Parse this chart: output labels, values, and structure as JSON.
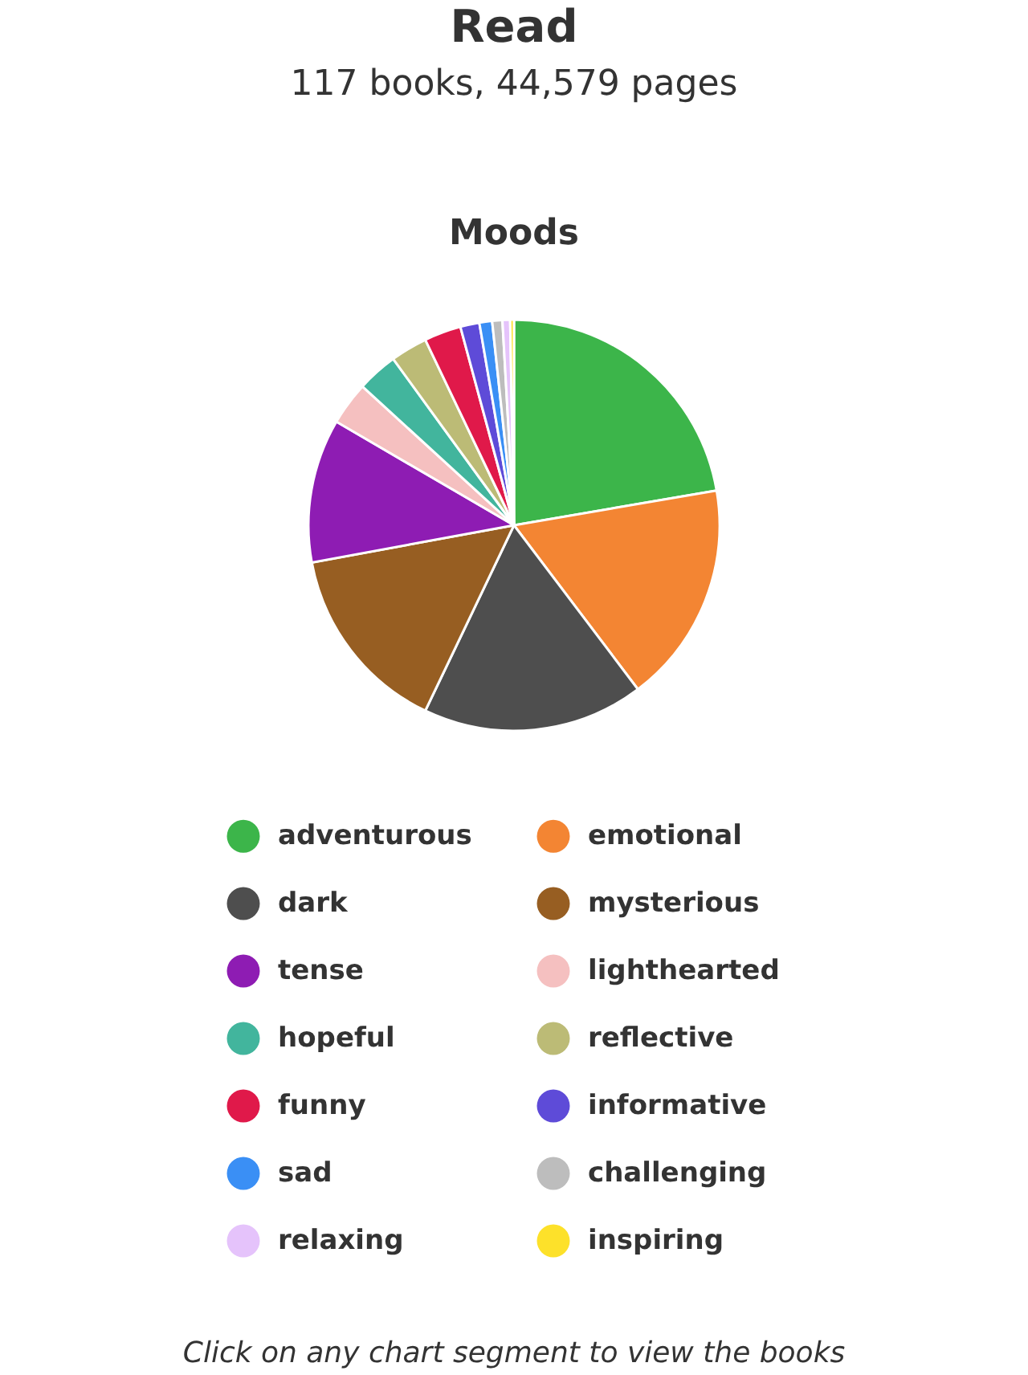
{
  "chart_data": {
    "type": "pie",
    "title": "Moods",
    "annotations": [
      "Read",
      "117 books, 44,579 pages",
      "Click on any chart segment to view the books"
    ],
    "categories": [
      "adventurous",
      "emotional",
      "dark",
      "mysterious",
      "tense",
      "lighthearted",
      "hopeful",
      "reflective",
      "funny",
      "informative",
      "sad",
      "challenging",
      "relaxing",
      "inspiring"
    ],
    "values": [
      22.3,
      17.4,
      17.4,
      15.0,
      11.3,
      3.4,
      3.2,
      2.9,
      2.9,
      1.5,
      1.0,
      0.8,
      0.6,
      0.3
    ],
    "colors": [
      "#3cb54a",
      "#f38533",
      "#4e4e4e",
      "#975e22",
      "#8e1cb3",
      "#f5c0c0",
      "#42b59d",
      "#bcbb76",
      "#e0194a",
      "#5e4bd8",
      "#3a8ff5",
      "#bdbdbd",
      "#e5c3fb",
      "#fde12a"
    ],
    "legend": "bottom"
  }
}
